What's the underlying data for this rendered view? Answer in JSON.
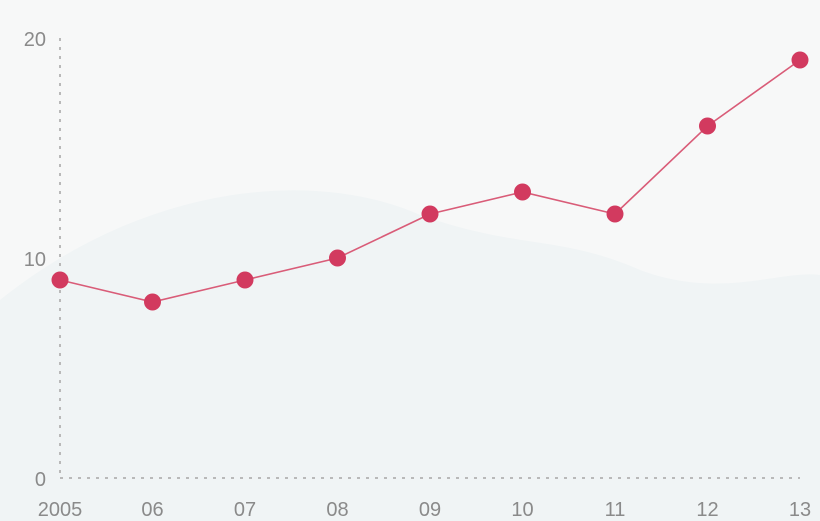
{
  "chart_data": {
    "type": "line",
    "categories": [
      "2005",
      "06",
      "07",
      "08",
      "09",
      "10",
      "11",
      "12",
      "13"
    ],
    "series": [
      {
        "values": [
          9.0,
          8.0,
          9.0,
          10.0,
          12.0,
          13.0,
          12.0,
          16.0,
          19.0
        ]
      }
    ],
    "ylim": [
      0,
      20
    ],
    "yticks": [
      "0",
      "10",
      "20"
    ],
    "grid": false,
    "colors": {
      "series": "#d23a5f",
      "line": "#d95c78",
      "axis": "#b9b9b9",
      "background": "#f7f8f8",
      "background_band": "#eef2f4"
    }
  }
}
